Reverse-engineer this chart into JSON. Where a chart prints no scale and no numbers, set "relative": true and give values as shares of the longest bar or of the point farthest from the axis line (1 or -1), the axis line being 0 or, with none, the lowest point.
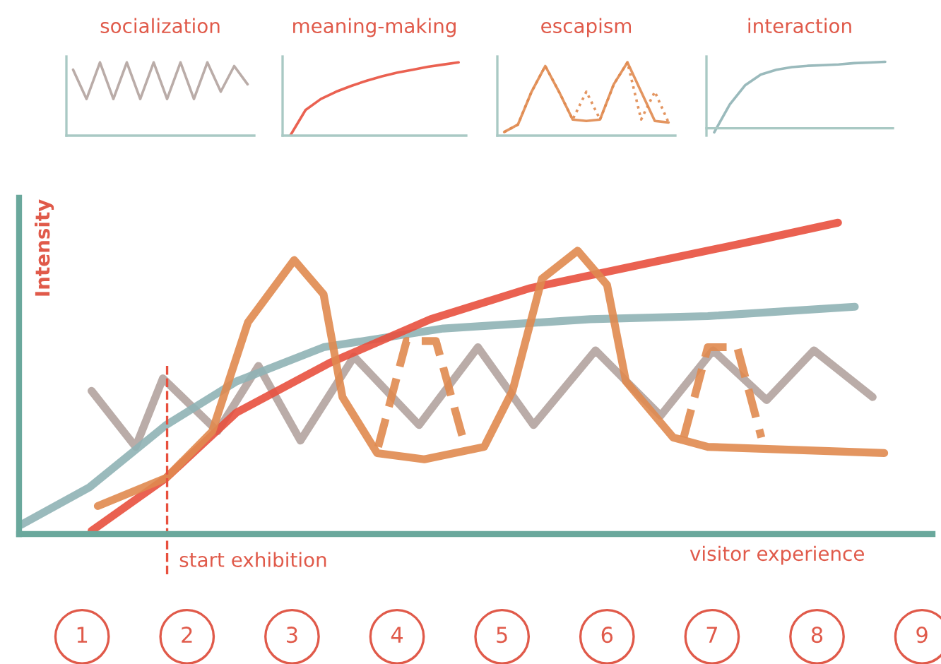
{
  "chart_data": [
    {
      "type": "line",
      "title": "socialization",
      "relative": true,
      "tick_labels": false,
      "categories": [
        null,
        null,
        null,
        null,
        null,
        null,
        null,
        null,
        null,
        null,
        null,
        null,
        null,
        null
      ],
      "series": [
        {
          "color": "#b3a39f",
          "values": [
            0.9,
            0.5,
            1,
            0.5,
            1,
            0.5,
            1,
            0.5,
            1,
            0.5,
            1,
            0.6,
            0.95,
            0.7
          ]
        }
      ]
    },
    {
      "type": "line",
      "title": "meaning-making",
      "relative": true,
      "tick_labels": false,
      "categories": [
        null,
        null,
        null,
        null,
        null,
        null,
        null,
        null,
        null,
        null,
        null,
        null
      ],
      "series": [
        {
          "color": "#e8503e",
          "values": [
            0,
            0.35,
            0.5,
            0.6,
            0.68,
            0.75,
            0.81,
            0.86,
            0.9,
            0.94,
            0.97,
            1
          ]
        }
      ]
    },
    {
      "type": "line",
      "title": "escapism",
      "relative": true,
      "tick_labels": false,
      "categories": [
        null,
        null,
        null,
        null,
        null,
        null,
        null,
        null,
        null,
        null,
        null,
        null,
        null
      ],
      "series": [
        {
          "color": "#e0894f",
          "values": [
            0.05,
            0.15,
            0.6,
            0.95,
            0.6,
            0.22,
            0.2,
            0.22,
            0.7,
            1,
            0.6,
            0.2,
            0.18
          ]
        },
        {
          "color": "#e0894f",
          "line_style": "dotted",
          "values": [
            0.05,
            0.15,
            0.6,
            0.95,
            0.6,
            0.22,
            0.6,
            0.22,
            0.7,
            1,
            0.22,
            0.6,
            0.18
          ]
        }
      ]
    },
    {
      "type": "line",
      "title": "interaction",
      "relative": true,
      "tick_labels": false,
      "categories": [
        null,
        null,
        null,
        null,
        null,
        null,
        null,
        null,
        null,
        null,
        null,
        null
      ],
      "series": [
        {
          "color": "#8fb3b5",
          "values": [
            -0.06,
            0.36,
            0.65,
            0.81,
            0.88,
            0.92,
            0.94,
            0.95,
            0.96,
            0.98,
            0.99,
            1
          ]
        }
      ]
    },
    {
      "type": "line",
      "relative": true,
      "xlabel": "visitor experience",
      "ylabel": "Intensity",
      "tick_labels": "x",
      "xlim": [
        0.4,
        9.1
      ],
      "xticks": [
        1,
        2,
        3,
        4,
        5,
        6,
        7,
        8,
        9
      ],
      "ref_lines": [
        {
          "axis": "x",
          "value": 1.81,
          "label": "start exhibition",
          "color": "#e8503e",
          "line_style": "dashed"
        }
      ],
      "series": [
        {
          "color": "#b3a39f",
          "x": [
            1.09,
            1.51,
            1.77,
            2.29,
            2.68,
            3.08,
            3.59,
            4.21,
            4.77,
            5.3,
            5.89,
            6.51,
            7.01,
            7.52,
            7.97,
            8.53
          ],
          "values": [
            0.46,
            0.28,
            0.5,
            0.33,
            0.54,
            0.3,
            0.57,
            0.35,
            0.6,
            0.35,
            0.59,
            0.38,
            0.59,
            0.43,
            0.59,
            0.44
          ]
        },
        {
          "color": "#8fb3b5",
          "x": [
            0.42,
            1.07,
            1.8,
            2.47,
            3.3,
            4.44,
            5.84,
            6.96,
            8.36
          ],
          "values": [
            0.03,
            0.15,
            0.35,
            0.49,
            0.6,
            0.66,
            0.69,
            0.7,
            0.73
          ]
        },
        {
          "color": "#e8503e",
          "x": [
            1.09,
            1.8,
            2.47,
            3.36,
            4.32,
            5.27,
            6.39,
            7.52,
            8.2
          ],
          "values": [
            0.01,
            0.18,
            0.39,
            0.55,
            0.69,
            0.79,
            0.87,
            0.95,
            1
          ]
        },
        {
          "color": "#e0894f",
          "x": [
            1.15,
            1.8,
            2.24,
            2.58,
            3.02,
            3.3,
            3.48,
            3.81,
            4.26,
            4.83,
            5.1,
            5.38,
            5.72,
            6.0,
            6.18,
            6.63,
            6.96,
            8.64
          ],
          "values": [
            0.09,
            0.18,
            0.33,
            0.68,
            0.88,
            0.77,
            0.44,
            0.26,
            0.24,
            0.28,
            0.46,
            0.82,
            0.91,
            0.8,
            0.49,
            0.31,
            0.28,
            0.26
          ]
        },
        {
          "color": "#e0894f",
          "line_style": "dashed",
          "x": [
            3.82,
            4.09,
            4.37,
            4.65
          ],
          "values": [
            0.28,
            0.62,
            0.62,
            0.28
          ]
        },
        {
          "color": "#e0894f",
          "line_style": "dashed",
          "x": [
            6.73,
            6.96,
            7.24,
            7.47
          ],
          "values": [
            0.31,
            0.6,
            0.6,
            0.31
          ]
        }
      ]
    }
  ]
}
